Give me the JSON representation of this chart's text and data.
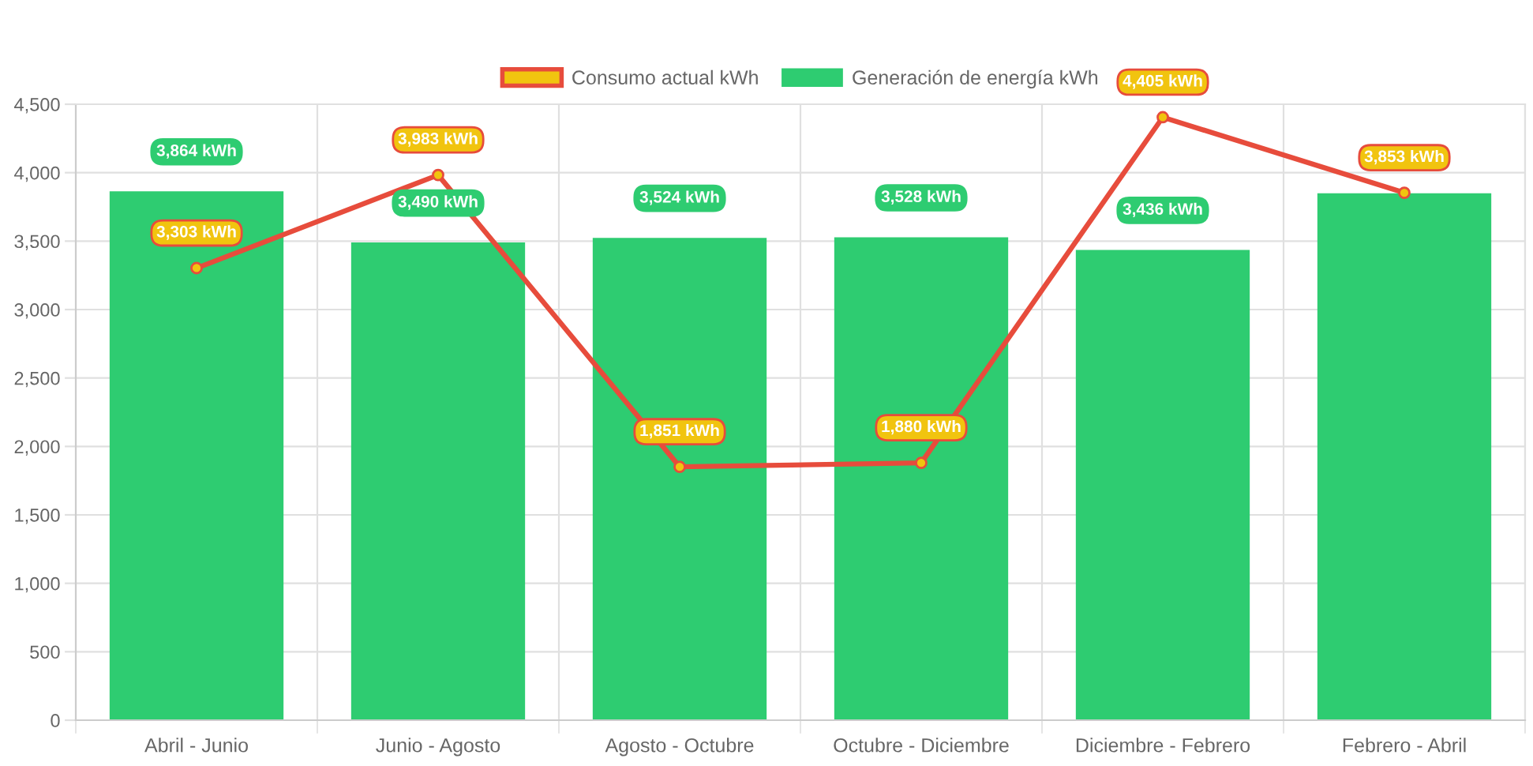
{
  "chart_data": {
    "type": "bar",
    "categories": [
      "Abril - Junio",
      "Junio - Agosto",
      "Agosto - Octubre",
      "Octubre - Diciembre",
      "Diciembre - Febrero",
      "Febrero - Abril"
    ],
    "series": [
      {
        "name": "Consumo actual kWh",
        "type": "line",
        "color": "#e74c3c",
        "colors": [
          "#f1c40f",
          "#f1c40f",
          "#f1c40f",
          "#f1c40f",
          "#f1c40f",
          "#f1c40f"
        ],
        "values": [
          3303,
          3983,
          1851,
          1880,
          4405,
          3853
        ],
        "value_labels": [
          "3,303 kWh",
          "3,983 kWh",
          "1,851 kWh",
          "1,880 kWh",
          "4,405 kWh",
          "3,853 kWh"
        ]
      },
      {
        "name": "Generación de energía kWh",
        "color": "#2ecc71",
        "values": [
          3864,
          3490,
          3524,
          3528,
          3436,
          3850
        ],
        "value_labels": [
          "3,864 kWh",
          "3,490 kWh",
          "3,524 kWh",
          "3,528 kWh",
          "3,436 kWh",
          null
        ]
      }
    ],
    "ylim": [
      0,
      4500
    ],
    "yticks": [
      0,
      500,
      {
        "value": 1000,
        "label": "1,000"
      },
      {
        "value": 1500,
        "label": "1,500"
      },
      {
        "value": 2000,
        "label": "2,000"
      },
      {
        "value": 2500,
        "label": "2,500"
      },
      {
        "value": 3000,
        "label": "3,000"
      },
      {
        "value": 3500,
        "label": "3,500"
      },
      {
        "value": 4000,
        "label": "4,000"
      },
      {
        "value": 4500,
        "label": "4,500"
      }
    ],
    "grid": true,
    "legend": "top",
    "marker": "circle",
    "line_style": "solid"
  }
}
